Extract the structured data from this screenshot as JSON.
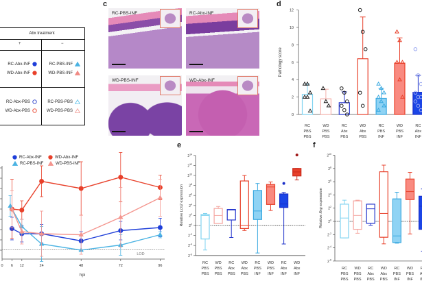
{
  "table": {
    "header": "Abx treatment",
    "col_plus": "+",
    "col_minus": "−",
    "rows": [
      {
        "left": [
          {
            "label": "RC-Abx-INF",
            "marker": "circle-filled",
            "color": "#1f3fd9"
          },
          {
            "label": "WD-Abx-INF",
            "marker": "circle-filled",
            "color": "#e8402a"
          }
        ],
        "right": [
          {
            "label": "RC-PBS-INF",
            "marker": "triangle-filled",
            "color": "#4bb3e3"
          },
          {
            "label": "WD-PBS-INF",
            "marker": "triangle-filled",
            "color": "#f08a84"
          }
        ]
      },
      {
        "left": [
          {
            "label": "RC-Abx-PBS",
            "marker": "circle-open",
            "color": "#2b3fc8"
          },
          {
            "label": "WD-Abx-PBS",
            "marker": "circle-open",
            "color": "#e8402a"
          }
        ],
        "right": [
          {
            "label": "RC-PBS-PBS",
            "marker": "triangle-open",
            "color": "#6cc8ee"
          },
          {
            "label": "WD-PBS-PBS",
            "marker": "triangle-open",
            "color": "#f2a6a0"
          }
        ]
      }
    ]
  },
  "panel_c": {
    "label": "c",
    "images": [
      {
        "label": "RC-PBS-INF"
      },
      {
        "label": "RC-Abx-INF"
      },
      {
        "label": "WD-PBS-INF"
      },
      {
        "label": "WD-Abx-INF"
      }
    ]
  },
  "chart_data": [
    {
      "type": "line",
      "xlabel": "hpi",
      "x_ticks": [
        0,
        6,
        12,
        24,
        48,
        72,
        96
      ],
      "ylim": [
        0,
        8
      ],
      "annotation": "LOD",
      "legend_placement": "top",
      "series": [
        {
          "name": "RC-Abx-INF",
          "color": "#1f3fd9",
          "marker": "circle",
          "x": [
            6,
            12,
            24,
            48,
            72,
            96
          ],
          "values": [
            2.1,
            1.6,
            1.6,
            0.9,
            1.9,
            2.2
          ],
          "err": [
            1.1,
            0.8,
            0.9,
            0.9,
            0.9,
            0.9
          ]
        },
        {
          "name": "WD-Abx-INF",
          "color": "#e8402a",
          "marker": "circle",
          "x": [
            6,
            12,
            24,
            48,
            72,
            96
          ],
          "values": [
            4.0,
            3.9,
            6.7,
            6.0,
            7.1,
            6.1
          ],
          "err": [
            2.9,
            0.9,
            1.5,
            2.6,
            2.4,
            1.2
          ]
        },
        {
          "name": "RC-PBS-INF",
          "color": "#4bb3e3",
          "marker": "triangle",
          "x": [
            5,
            12,
            24,
            48,
            72,
            96
          ],
          "values": [
            4.3,
            2.3,
            0.6,
            0.0,
            0.5,
            1.5
          ],
          "err": [
            1.0,
            0.7,
            1.7,
            0.0,
            1.0,
            0.3
          ]
        },
        {
          "name": "WD-PBS-INF",
          "color": "#f4958e",
          "marker": "triangle",
          "x": [
            6,
            12,
            24,
            48,
            72,
            96
          ],
          "values": [
            4.0,
            1.8,
            1.6,
            1.5,
            3.2,
            5.1
          ],
          "err": [
            1.8,
            1.2,
            2.2,
            1.9,
            2.9,
            1.8
          ]
        }
      ]
    },
    {
      "type": "bar",
      "panel": "d",
      "ylabel": "Pathology score",
      "ylim": [
        0,
        12
      ],
      "y_ticks": [
        0,
        2,
        4,
        6,
        8,
        10,
        12
      ],
      "categories": [
        [
          "RC",
          "PBS",
          "PBS"
        ],
        [
          "WD",
          "PBS",
          "PBS"
        ],
        [
          "RC",
          "Abx",
          "PBS"
        ],
        [
          "WD",
          "Abx",
          "PBS"
        ],
        [
          "RC",
          "PBS",
          "INF"
        ],
        [
          "WD",
          "PBS",
          "INF"
        ],
        [
          "RC",
          "Abx",
          "INF"
        ]
      ],
      "values": [
        2.3,
        1.8,
        1.35,
        6.4,
        1.85,
        5.9,
        2.55
      ],
      "sd_upper": [
        3.5,
        2.9,
        2.6,
        11.2,
        3.0,
        8.8,
        4.5
      ],
      "points": [
        [
          3.5,
          3.5,
          2.5,
          2,
          2,
          0.4
        ],
        [
          3,
          1.5,
          1
        ],
        [
          3,
          2.5,
          1.5,
          1,
          0.5,
          0
        ],
        [
          12,
          9.5,
          7.5,
          2.5,
          1
        ],
        [
          3.5,
          3,
          2.5,
          2,
          1.5,
          1,
          0.5
        ],
        [
          9.5,
          8.5,
          6,
          6,
          4,
          2
        ],
        [
          7.5,
          4.5,
          3.5,
          2.5,
          2,
          2,
          1.5,
          1,
          0.5
        ]
      ],
      "styles": [
        {
          "stroke": "#7fd3f0",
          "fill": "none",
          "marker": "triangle",
          "mstroke": "#222"
        },
        {
          "stroke": "#f4b0aa",
          "fill": "none",
          "marker": "triangle",
          "mstroke": "#222"
        },
        {
          "stroke": "#2233cc",
          "fill": "none",
          "marker": "circle",
          "mstroke": "#222"
        },
        {
          "stroke": "#e8402a",
          "fill": "none",
          "marker": "circle",
          "mstroke": "#222"
        },
        {
          "stroke": "#3aa9e0",
          "fill": "#8fd3f4",
          "marker": "triangle",
          "mstroke": "#3aa9e0"
        },
        {
          "stroke": "#e8402a",
          "fill": "#f98a80",
          "marker": "triangle",
          "mstroke": "#e8402a"
        },
        {
          "stroke": "#1a2fc8",
          "fill": "#1b45e6",
          "marker": "circle",
          "mstroke": "#9aa8f0"
        }
      ]
    },
    {
      "type": "box",
      "panel": "e",
      "ylabel_prefix": "Relative ",
      "ylabel_gene": "Lcn2",
      "ylabel_suffix": " expression",
      "y_scale": "log2",
      "y_ticks": [
        -6,
        -4,
        -2,
        0,
        2,
        4,
        6,
        8,
        10,
        12,
        14
      ],
      "categories": [
        [
          "RC",
          "PBS",
          "PBS"
        ],
        [
          "WD",
          "PBS",
          "PBS"
        ],
        [
          "RC",
          "Abx",
          "PBS"
        ],
        [
          "WD",
          "Abx",
          "PBS"
        ],
        [
          "RC",
          "PBS",
          "INF"
        ],
        [
          "WD",
          "PBS",
          "INF"
        ],
        [
          "RC",
          "Abx",
          "INF"
        ],
        [
          "WD",
          "Abx",
          "INF"
        ]
      ],
      "boxes_log2": [
        {
          "min": -4.9,
          "q1": -2.7,
          "median": 2.0,
          "q3": 2.2,
          "max": 2.4
        },
        {
          "min": 0.4,
          "q1": 0.4,
          "median": 2.0,
          "q3": 3.4,
          "max": 3.8
        },
        {
          "min": -2.4,
          "q1": 1.1,
          "median": 3.1,
          "q3": 3.2,
          "max": 3.2
        },
        {
          "min": -1.0,
          "q1": -0.6,
          "median": 0.0,
          "q3": 8.9,
          "max": 10.0
        },
        {
          "min": -5.5,
          "q1": 1.2,
          "median": 2.9,
          "q3": 7.0,
          "max": 8.4
        },
        {
          "min": 3.0,
          "q1": 4.2,
          "median": 7.7,
          "q3": 8.2,
          "max": 8.7
        },
        {
          "min": -3.7,
          "q1": 3.6,
          "median": 4.3,
          "q3": 6.3,
          "max": 6.6,
          "outliers": [
            8.4
          ]
        },
        {
          "min": 9.1,
          "q1": 9.9,
          "median": 10.7,
          "q3": 11.4,
          "max": 11.4,
          "outliers": [
            14.1
          ]
        }
      ]
    },
    {
      "type": "box",
      "panel": "f",
      "ylabel_prefix": "Relative ",
      "ylabel_gene": "Ifng",
      "ylabel_suffix": " expression",
      "y_scale": "log2",
      "y_ticks": [
        -6,
        -4,
        -2,
        0,
        2,
        4,
        6,
        8,
        10
      ],
      "categories": [
        [
          "RC",
          "PBS",
          "PBS"
        ],
        [
          "WD",
          "PBS",
          "PBS"
        ],
        [
          "RC",
          "Abx",
          "PBS"
        ],
        [
          "WD",
          "Abx",
          "PBS"
        ],
        [
          "RC",
          "PBS",
          "INF"
        ],
        [
          "WD",
          "PBS",
          "INF"
        ],
        [
          "RC",
          "Abx",
          "INF"
        ]
      ],
      "boxes_log2": [
        {
          "min": -2.5,
          "q1": -2.5,
          "median": 0.5,
          "q3": 2.6,
          "max": 3.2
        },
        {
          "min": -1.8,
          "q1": -1.2,
          "median": 0.9,
          "q3": 3.1,
          "max": 3.2
        },
        {
          "min": -0.6,
          "q1": -0.3,
          "median": 1.9,
          "q3": 2.6,
          "max": 2.6
        },
        {
          "min": -3.4,
          "q1": -2.4,
          "median": 1.2,
          "q3": 7.5,
          "max": 8.5
        },
        {
          "min": -3.3,
          "q1": -3.2,
          "median": -2.2,
          "q3": 3.4,
          "max": 4.4
        },
        {
          "min": -1.9,
          "q1": 3.3,
          "median": 4.5,
          "q3": 6.4,
          "max": 7.4
        },
        {
          "min": -4.5,
          "q1": -1.2,
          "median": 2.3,
          "q3": 3.8,
          "max": 4.9
        }
      ]
    }
  ],
  "box_styles": [
    {
      "stroke": "#7fd3f0",
      "fill": "#fff"
    },
    {
      "stroke": "#f4a6a0",
      "fill": "#fff"
    },
    {
      "stroke": "#2233cc",
      "fill": "#fff"
    },
    {
      "stroke": "#e8402a",
      "fill": "#fff"
    },
    {
      "stroke": "#3aa9e0",
      "fill": "#8fd3f4"
    },
    {
      "stroke": "#e8402a",
      "fill": "#f98a80"
    },
    {
      "stroke": "#1a2fc8",
      "fill": "#1b45e6"
    },
    {
      "stroke": "#c8281a",
      "fill": "#e8402a"
    }
  ],
  "labels": {
    "d": "d",
    "e": "e",
    "f": "f"
  }
}
